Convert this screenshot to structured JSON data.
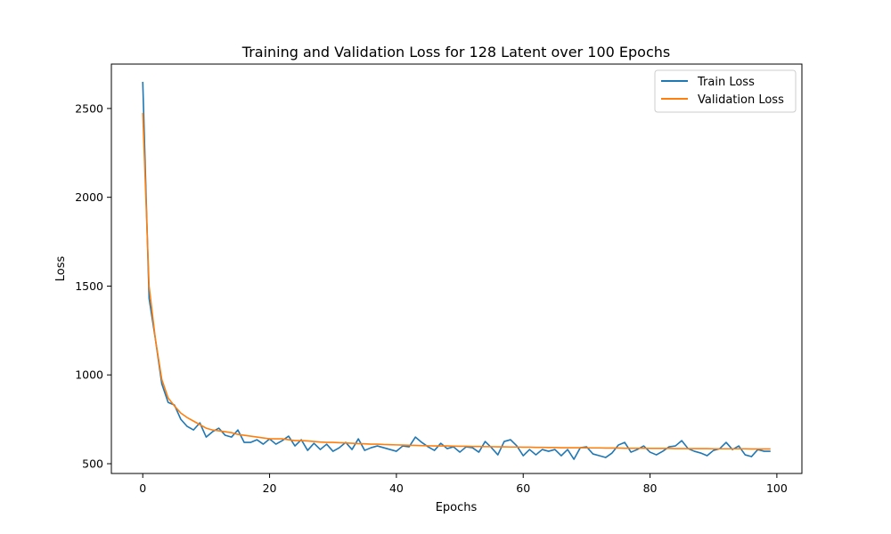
{
  "chart_data": {
    "type": "line",
    "title": "Training and Validation Loss for 128 Latent over 100 Epochs",
    "xlabel": "Epochs",
    "ylabel": "Loss",
    "xlim": [
      -4.95,
      103.95
    ],
    "ylim": [
      445,
      2750
    ],
    "xticks": [
      0,
      20,
      40,
      60,
      80,
      100
    ],
    "yticks": [
      500,
      1000,
      1500,
      2000,
      2500
    ],
    "grid": false,
    "legend": "top-right",
    "colors": {
      "train": "#1f77b4",
      "validation": "#ff7f0e"
    },
    "series": [
      {
        "name": "Train Loss",
        "values": [
          2650,
          1430,
          1200,
          950,
          845,
          830,
          750,
          710,
          690,
          730,
          650,
          680,
          700,
          660,
          650,
          690,
          620,
          620,
          635,
          610,
          640,
          610,
          630,
          655,
          600,
          635,
          575,
          615,
          580,
          610,
          570,
          590,
          620,
          580,
          640,
          575,
          590,
          600,
          590,
          580,
          570,
          600,
          595,
          650,
          620,
          595,
          575,
          615,
          585,
          595,
          565,
          595,
          590,
          565,
          625,
          590,
          550,
          625,
          635,
          600,
          545,
          580,
          550,
          580,
          570,
          580,
          545,
          580,
          525,
          590,
          595,
          555,
          545,
          535,
          560,
          605,
          620,
          565,
          580,
          600,
          565,
          550,
          570,
          595,
          600,
          630,
          585,
          570,
          560,
          545,
          575,
          585,
          620,
          580,
          600,
          550,
          540,
          580,
          570,
          570
        ]
      },
      {
        "name": "Validation Loss",
        "values": [
          2475,
          1500,
          1200,
          975,
          870,
          825,
          785,
          760,
          740,
          720,
          700,
          690,
          685,
          680,
          675,
          665,
          660,
          655,
          650,
          645,
          640,
          640,
          640,
          635,
          630,
          630,
          628,
          625,
          622,
          620,
          620,
          618,
          617,
          615,
          613,
          612,
          610,
          610,
          608,
          607,
          606,
          605,
          604,
          603,
          602,
          601,
          600,
          600,
          600,
          599,
          598,
          598,
          597,
          597,
          596,
          596,
          595,
          595,
          594,
          594,
          593,
          593,
          592,
          592,
          591,
          591,
          590,
          590,
          590,
          590,
          589,
          589,
          589,
          588,
          588,
          588,
          587,
          587,
          587,
          587,
          586,
          586,
          586,
          586,
          585,
          585,
          585,
          585,
          585,
          585,
          584,
          584,
          584,
          584,
          584,
          584,
          583,
          583,
          583,
          583
        ]
      }
    ]
  }
}
